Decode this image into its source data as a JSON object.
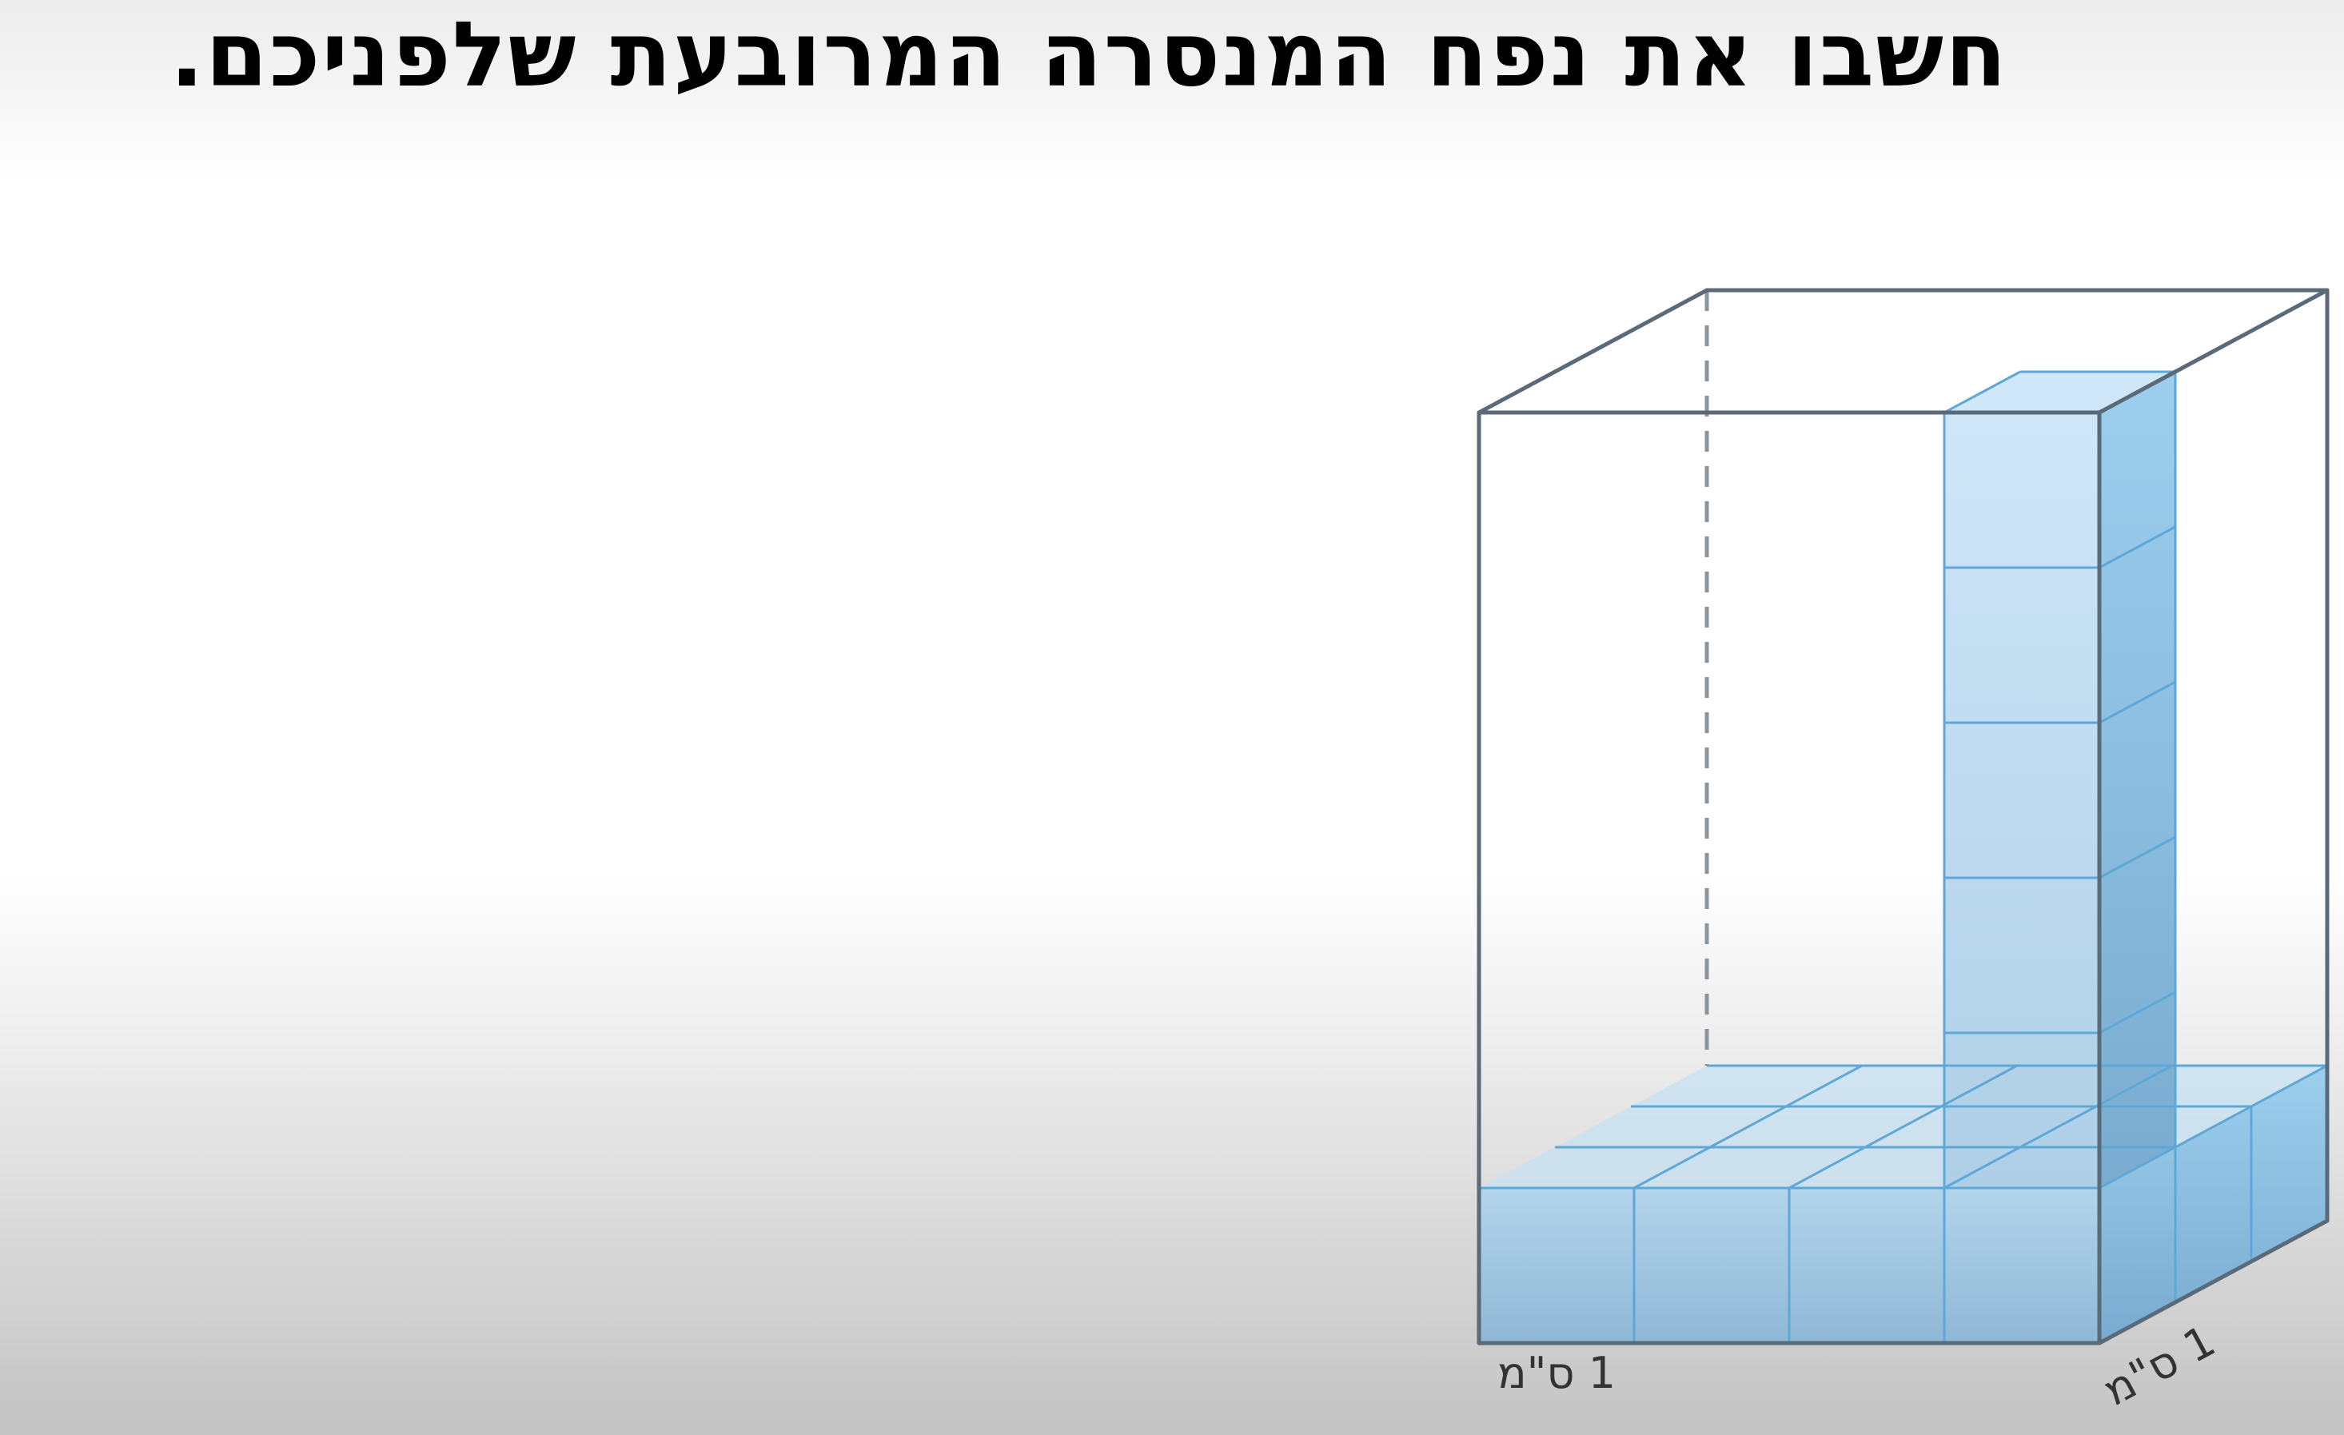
{
  "heading": {
    "text": "חשבו את נפח המנסרה המרובעת שלפניכם."
  },
  "prism": {
    "front_width_units": 4,
    "depth_units": 3,
    "height_units": 6,
    "base_layer_cubes": 12,
    "column_cubes": 5,
    "cube_color": "#9ccfee",
    "edge_color": "#5ea8d8",
    "outline_color": "#5a6a78"
  },
  "labels": {
    "width_unit": "1 ס\"מ",
    "depth_unit": "1 ס\"מ"
  }
}
